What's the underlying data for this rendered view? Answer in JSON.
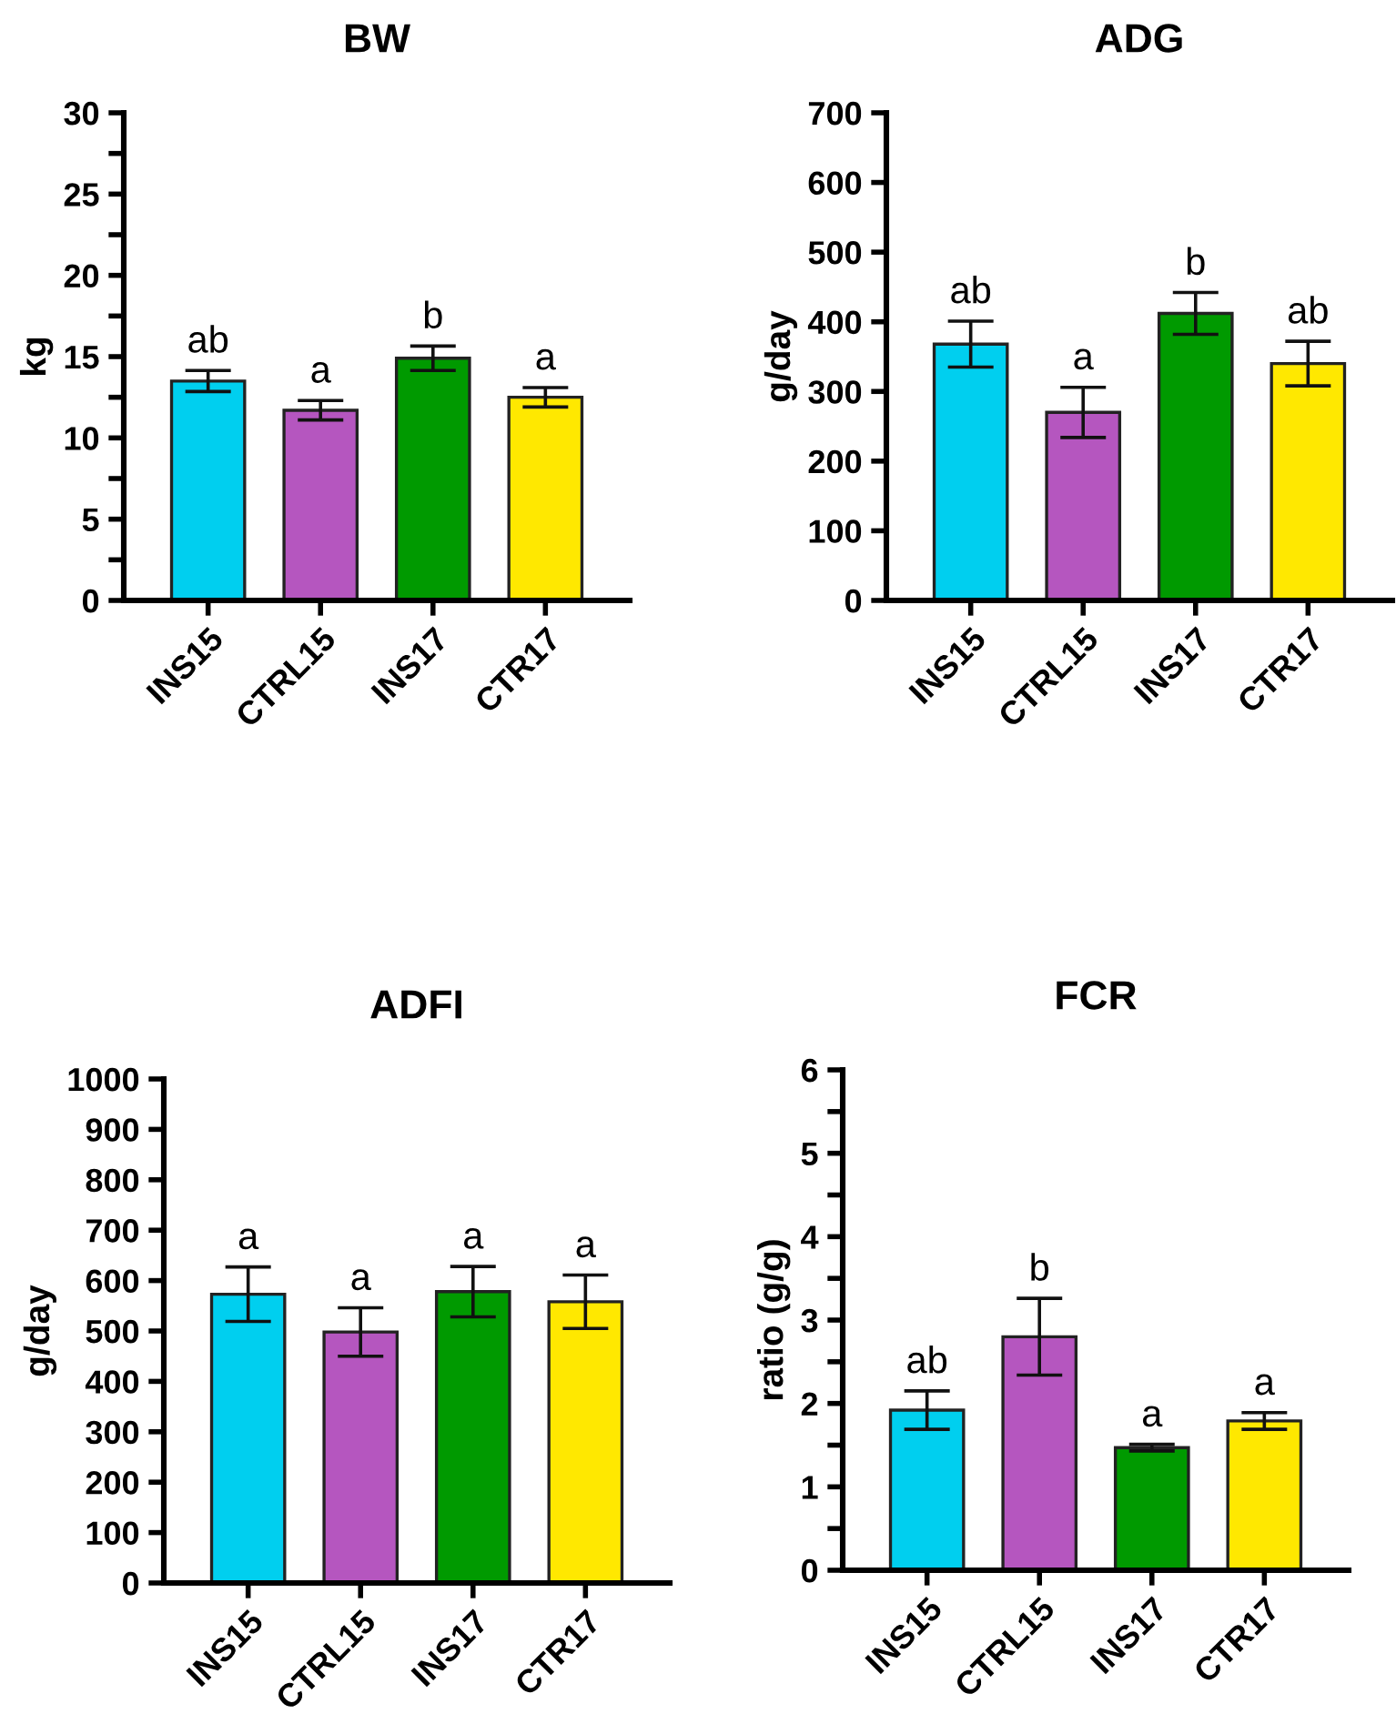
{
  "chart_data": [
    {
      "type": "bar",
      "title": "BW",
      "ylabel": "kg",
      "categories": [
        "INS15",
        "CTRL15",
        "INS17",
        "CTR17"
      ],
      "values": [
        13.5,
        11.7,
        14.9,
        12.5
      ],
      "errors": [
        0.65,
        0.6,
        0.75,
        0.6
      ],
      "colors": [
        "#00cfef",
        "#b556bf",
        "#009a00",
        "#ffe800"
      ],
      "ylim": [
        0,
        30
      ],
      "yticks": [
        0,
        {
          "value": 2.5,
          "label": null
        },
        5,
        {
          "value": 7.5,
          "label": null
        },
        10,
        {
          "value": 12.5,
          "label": null
        },
        15,
        {
          "value": 17.5,
          "label": null
        },
        20,
        {
          "value": 22.5,
          "label": null
        },
        25,
        {
          "value": 27.5,
          "label": null
        },
        30
      ],
      "annotations": [
        {
          "text": "ab",
          "x": "INS15",
          "y": 14.15
        },
        {
          "text": "a",
          "x": "CTRL15",
          "y": 12.3
        },
        {
          "text": "b",
          "x": "INS17",
          "y": 15.65
        },
        {
          "text": "a",
          "x": "CTR17",
          "y": 13.1
        }
      ]
    },
    {
      "type": "bar",
      "title": "ADG",
      "ylabel": "g/day",
      "categories": [
        "INS15",
        "CTRL15",
        "INS17",
        "CTR17"
      ],
      "values": [
        368,
        270,
        412,
        340
      ],
      "errors": [
        33,
        36,
        30,
        32
      ],
      "colors": [
        "#00cfef",
        "#b556bf",
        "#009a00",
        "#ffe800"
      ],
      "ylim": [
        0,
        700
      ],
      "yticks": [
        0,
        100,
        200,
        300,
        400,
        500,
        600,
        700
      ],
      "annotations": [
        {
          "text": "ab",
          "x": "INS15",
          "y": 401
        },
        {
          "text": "a",
          "x": "CTRL15",
          "y": 306
        },
        {
          "text": "b",
          "x": "INS17",
          "y": 442
        },
        {
          "text": "ab",
          "x": "CTR17",
          "y": 372
        }
      ]
    },
    {
      "type": "bar",
      "title": "ADFI",
      "ylabel": "g/day",
      "categories": [
        "INS15",
        "CTRL15",
        "INS17",
        "CTR17"
      ],
      "values": [
        573,
        498,
        578,
        558
      ],
      "errors": [
        54,
        48,
        50,
        53
      ],
      "colors": [
        "#00cfef",
        "#b556bf",
        "#009a00",
        "#ffe800"
      ],
      "ylim": [
        0,
        1000
      ],
      "yticks": [
        0,
        100,
        200,
        300,
        400,
        500,
        600,
        700,
        800,
        900,
        1000
      ],
      "annotations": [
        {
          "text": "a",
          "x": "INS15",
          "y": 627
        },
        {
          "text": "a",
          "x": "CTRL15",
          "y": 546
        },
        {
          "text": "a",
          "x": "INS17",
          "y": 628
        },
        {
          "text": "a",
          "x": "CTR17",
          "y": 611
        }
      ]
    },
    {
      "type": "bar",
      "title": "FCR",
      "ylabel": "ratio (g/g)",
      "categories": [
        "INS15",
        "CTRL15",
        "INS17",
        "CTR17"
      ],
      "values": [
        1.92,
        2.8,
        1.47,
        1.79
      ],
      "errors": [
        0.23,
        0.46,
        0.04,
        0.1
      ],
      "colors": [
        "#00cfef",
        "#b556bf",
        "#009a00",
        "#ffe800"
      ],
      "ylim": [
        0,
        6
      ],
      "yticks": [
        0,
        {
          "value": 0.5,
          "label": null
        },
        1,
        {
          "value": 1.5,
          "label": null
        },
        2,
        {
          "value": 2.5,
          "label": null
        },
        3,
        {
          "value": 3.5,
          "label": null
        },
        4,
        {
          "value": 4.5,
          "label": null
        },
        5,
        {
          "value": 5.5,
          "label": null
        },
        6
      ],
      "annotations": [
        {
          "text": "ab",
          "x": "INS15",
          "y": 2.15
        },
        {
          "text": "b",
          "x": "CTRL15",
          "y": 3.26
        },
        {
          "text": "a",
          "x": "INS17",
          "y": 1.51
        },
        {
          "text": "a",
          "x": "CTR17",
          "y": 1.89
        }
      ]
    }
  ]
}
